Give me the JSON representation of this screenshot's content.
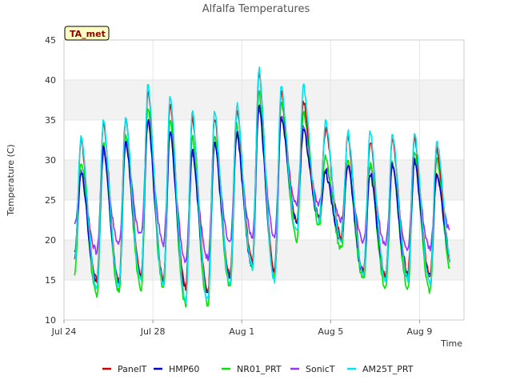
{
  "chart_data": {
    "type": "line",
    "title": "Alfalfa Temperatures",
    "badge": "TA_met",
    "xlabel": "Time",
    "ylabel": "Temperature (C)",
    "xlim": [
      0,
      45
    ],
    "ylim": [
      10,
      45
    ],
    "yticks": [
      10,
      15,
      20,
      25,
      30,
      35,
      40,
      45
    ],
    "xticks": [
      {
        "day": 0,
        "label": "Jul 24"
      },
      {
        "day": 10,
        "label": "Jul 28"
      },
      {
        "day": 20,
        "label": "Aug 1"
      },
      {
        "day": 30,
        "label": "Aug 5"
      },
      {
        "day": 40,
        "label": "Aug 9"
      }
    ],
    "grid": true,
    "band_fill": "#f2f2f2",
    "legend_position": "bottom",
    "daily_max": {
      "PanelT": [
        32.5,
        34.8,
        35.5,
        38.7,
        37.0,
        35.5,
        35.5,
        36.5,
        41.0,
        38.5,
        37.5,
        34.0,
        33.0,
        32.5,
        33.0,
        33.0,
        31.5
      ],
      "HMP60": [
        28.5,
        31.5,
        32.5,
        35.2,
        33.5,
        31.5,
        32.3,
        33.5,
        37.0,
        35.5,
        34.0,
        28.5,
        29.5,
        28.5,
        29.5,
        30.0,
        28.5
      ],
      "NR01_PRT": [
        30.0,
        32.0,
        33.0,
        36.5,
        35.0,
        33.0,
        33.5,
        34.5,
        38.5,
        37.5,
        36.0,
        30.5,
        30.0,
        29.5,
        30.0,
        31.0,
        30.0
      ],
      "SonicT": [
        28.5,
        31.0,
        32.0,
        35.0,
        33.5,
        31.0,
        32.0,
        33.0,
        36.5,
        35.5,
        34.5,
        29.0,
        29.0,
        29.0,
        29.5,
        30.0,
        28.0
      ],
      "AM25T_PRT": [
        33.0,
        35.0,
        35.5,
        39.5,
        37.8,
        36.0,
        36.0,
        37.0,
        41.5,
        39.3,
        39.5,
        35.0,
        33.5,
        33.5,
        33.5,
        33.5,
        32.5
      ]
    },
    "daily_min": {
      "PanelT": [
        18.0,
        15.0,
        14.8,
        15.5,
        15.0,
        14.0,
        13.5,
        15.5,
        17.5,
        16.0,
        22.0,
        23.0,
        20.5,
        16.0,
        15.5,
        16.0,
        15.5,
        17.0
      ],
      "HMP60": [
        18.5,
        14.8,
        14.8,
        15.8,
        15.0,
        14.0,
        13.5,
        15.5,
        17.0,
        16.0,
        22.5,
        23.0,
        20.0,
        16.0,
        15.5,
        15.5,
        15.5,
        17.0
      ],
      "NR01_PRT": [
        16.0,
        13.3,
        13.5,
        14.0,
        14.0,
        11.8,
        12.0,
        14.2,
        16.5,
        15.3,
        20.0,
        22.0,
        19.0,
        15.0,
        14.0,
        14.0,
        13.5,
        15.5
      ],
      "SonicT": [
        22.0,
        18.5,
        19.5,
        20.5,
        19.5,
        17.5,
        17.8,
        19.5,
        20.5,
        20.5,
        24.5,
        24.5,
        22.5,
        20.0,
        19.5,
        19.0,
        19.0,
        20.5
      ],
      "AM25T_PRT": [
        17.5,
        14.0,
        14.2,
        15.0,
        14.5,
        12.5,
        12.5,
        14.5,
        16.5,
        15.0,
        21.0,
        22.5,
        19.5,
        15.5,
        15.0,
        15.0,
        14.5,
        17.0
      ]
    },
    "series": [
      {
        "name": "PanelT",
        "color": "#cc0000"
      },
      {
        "name": "HMP60",
        "color": "#0000cc"
      },
      {
        "name": "NR01_PRT",
        "color": "#00e600"
      },
      {
        "name": "SonicT",
        "color": "#9933ff"
      },
      {
        "name": "AM25T_PRT",
        "color": "#00e5ee"
      }
    ]
  }
}
